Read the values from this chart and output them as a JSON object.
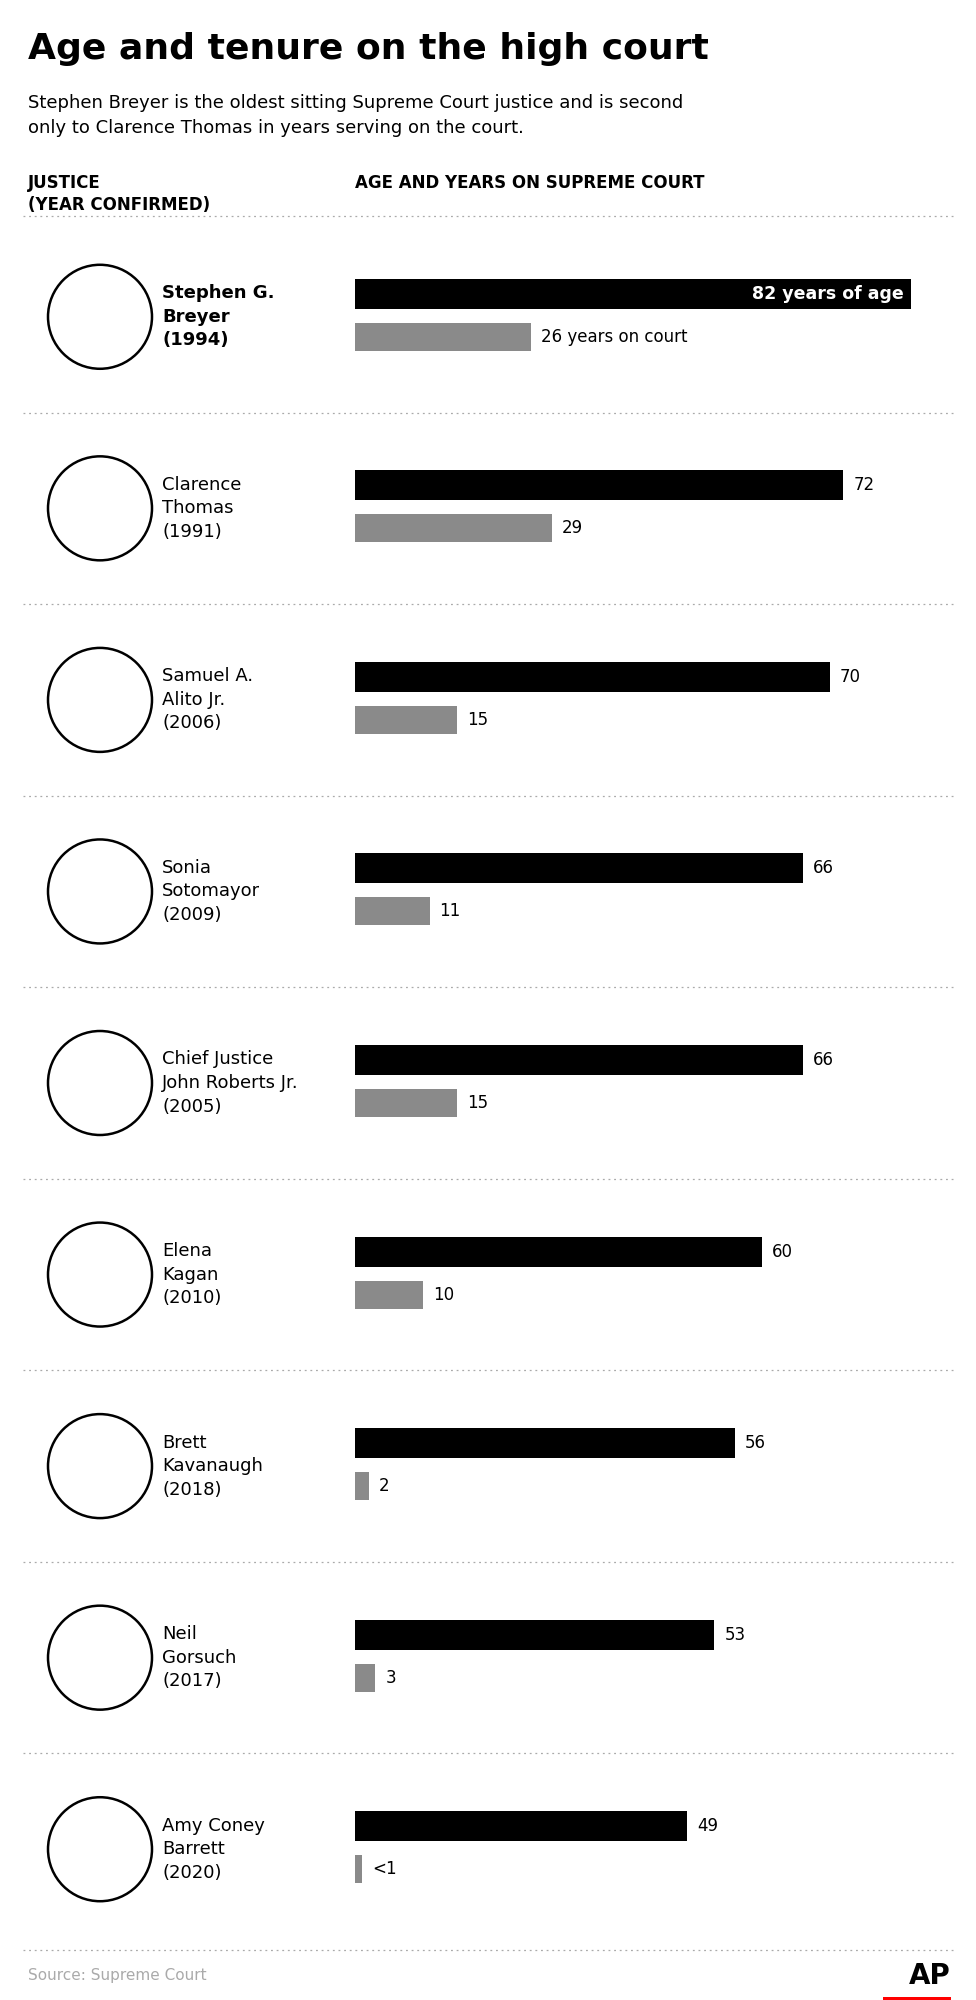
{
  "title": "Age and tenure on the high court",
  "subtitle": "Stephen Breyer is the oldest sitting Supreme Court justice and is second\nonly to Clarence Thomas in years serving on the court.",
  "col_header_left": "JUSTICE\n(YEAR CONFIRMED)",
  "col_header_right": "AGE AND YEARS ON SUPREME COURT",
  "source": "Source: Supreme Court",
  "justices": [
    {
      "name": "Stephen G.\nBreyer\n(1994)",
      "name_bold": true,
      "age": 82,
      "years": 26,
      "age_label": "82 years of age",
      "years_label": "26 years on court",
      "age_label_inside": true,
      "years_label_inside": false
    },
    {
      "name": "Clarence\nThomas\n(1991)",
      "name_bold": false,
      "age": 72,
      "years": 29,
      "age_label": "72",
      "years_label": "29",
      "age_label_inside": false,
      "years_label_inside": false
    },
    {
      "name": "Samuel A.\nAlito Jr.\n(2006)",
      "name_bold": false,
      "age": 70,
      "years": 15,
      "age_label": "70",
      "years_label": "15",
      "age_label_inside": false,
      "years_label_inside": false
    },
    {
      "name": "Sonia\nSotomayor\n(2009)",
      "name_bold": false,
      "age": 66,
      "years": 11,
      "age_label": "66",
      "years_label": "11",
      "age_label_inside": false,
      "years_label_inside": false
    },
    {
      "name": "Chief Justice\nJohn Roberts Jr.\n(2005)",
      "name_bold": false,
      "age": 66,
      "years": 15,
      "age_label": "66",
      "years_label": "15",
      "age_label_inside": false,
      "years_label_inside": false
    },
    {
      "name": "Elena\nKagan\n(2010)",
      "name_bold": false,
      "age": 60,
      "years": 10,
      "age_label": "60",
      "years_label": "10",
      "age_label_inside": false,
      "years_label_inside": false
    },
    {
      "name": "Brett\nKavanaugh\n(2018)",
      "name_bold": false,
      "age": 56,
      "years": 2,
      "age_label": "56",
      "years_label": "2",
      "age_label_inside": false,
      "years_label_inside": false
    },
    {
      "name": "Neil\nGorsuch\n(2017)",
      "name_bold": false,
      "age": 53,
      "years": 3,
      "age_label": "53",
      "years_label": "3",
      "age_label_inside": false,
      "years_label_inside": false
    },
    {
      "name": "Amy Coney\nBarrett\n(2020)",
      "name_bold": false,
      "age": 49,
      "years": 0.3,
      "age_label": "49",
      "years_label": "<1",
      "age_label_inside": false,
      "years_label_inside": false
    }
  ],
  "bar_color_age": "#000000",
  "bar_color_years": "#8a8a8a",
  "bar_max": 82,
  "background_color": "#ffffff",
  "title_fontsize": 26,
  "subtitle_fontsize": 13,
  "name_fontsize": 13,
  "label_fontsize": 12,
  "header_fontsize": 12,
  "source_color": "#aaaaaa",
  "dotted_color": "#aaaaaa"
}
